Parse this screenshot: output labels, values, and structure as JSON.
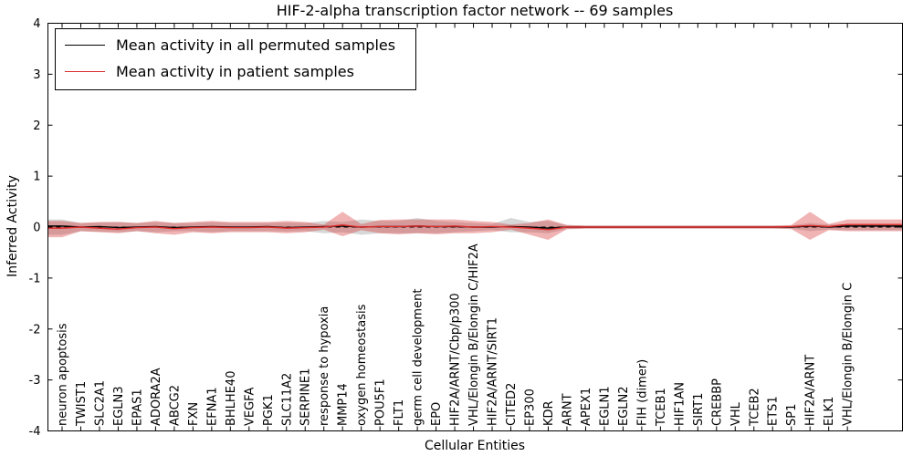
{
  "title": "HIF-2-alpha transcription factor network -- 69 samples",
  "chart_data": {
    "type": "line",
    "title": "HIF-2-alpha transcription factor network -- 69 samples",
    "xlabel": "Cellular Entities",
    "ylabel": "Inferred Activity",
    "ylim": [
      -4,
      4
    ],
    "yticks": [
      -4,
      -3,
      -2,
      -1,
      0,
      1,
      2,
      3,
      4
    ],
    "grid": false,
    "legend_position": "upper left",
    "categories": [
      "neuron apoptosis",
      "TWIST1",
      "SLC2A1",
      "EGLN3",
      "EPAS1",
      "ADORA2A",
      "ABCG2",
      "FXN",
      "EFNA1",
      "BHLHE40",
      "VEGFA",
      "PGK1",
      "SLC11A2",
      "SERPINE1",
      "response to hypoxia",
      "MMP14",
      "oxygen homeostasis",
      "POU5F1",
      "FLT1",
      "germ cell development",
      "EPO",
      "HIF2A/ARNT/Cbp/p300",
      "VHL/Elongin B/Elongin C/HIF2A",
      "HIF2A/ARNT/SIRT1",
      "CITED2",
      "EP300",
      "KDR",
      "ARNT",
      "APEX1",
      "EGLN1",
      "EGLN2",
      "FIH (dimer)",
      "TCEB1",
      "HIF1AN",
      "SIRT1",
      "CREBBP",
      "VHL",
      "TCEB2",
      "ETS1",
      "SP1",
      "HIF2A/ARNT",
      "ELK1",
      "VHL/Elongin B/Elongin C"
    ],
    "series": [
      {
        "name": "Mean activity in all permuted samples",
        "color": "#000000",
        "band_color": "rgba(140,140,140,0.35)",
        "values": [
          0.02,
          0.0,
          0.01,
          -0.01,
          0.0,
          0.01,
          -0.01,
          0.0,
          0.01,
          0.0,
          0.0,
          0.01,
          -0.01,
          0.0,
          0.01,
          0.02,
          0.0,
          0.01,
          0.01,
          0.02,
          0.01,
          0.01,
          0.0,
          0.0,
          0.01,
          0.0,
          -0.02,
          0.0,
          0.0,
          0.0,
          0.0,
          0.0,
          0.0,
          0.0,
          0.0,
          0.0,
          0.0,
          0.0,
          0.0,
          0.0,
          0.02,
          0.0,
          0.02
        ],
        "band_upper": [
          0.15,
          0.08,
          0.09,
          0.1,
          0.08,
          0.1,
          0.08,
          0.08,
          0.1,
          0.08,
          0.08,
          0.08,
          0.09,
          0.08,
          0.12,
          0.1,
          0.15,
          0.12,
          0.12,
          0.18,
          0.12,
          0.1,
          0.08,
          0.06,
          0.18,
          0.1,
          0.12,
          0.04,
          0.03,
          0.03,
          0.03,
          0.03,
          0.03,
          0.03,
          0.03,
          0.03,
          0.03,
          0.03,
          0.03,
          0.03,
          0.08,
          0.05,
          0.06
        ],
        "band_lower": [
          -0.15,
          -0.08,
          -0.09,
          -0.1,
          -0.08,
          -0.1,
          -0.08,
          -0.08,
          -0.1,
          -0.08,
          -0.08,
          -0.08,
          -0.09,
          -0.08,
          -0.12,
          -0.1,
          -0.15,
          -0.12,
          -0.12,
          -0.12,
          -0.12,
          -0.1,
          -0.08,
          -0.06,
          -0.1,
          -0.1,
          -0.12,
          -0.04,
          -0.03,
          -0.03,
          -0.03,
          -0.03,
          -0.03,
          -0.03,
          -0.03,
          -0.03,
          -0.03,
          -0.03,
          -0.03,
          -0.03,
          -0.08,
          -0.05,
          -0.06
        ]
      },
      {
        "name": "Mean activity in patient samples",
        "color": "#dd2c2c",
        "band_color": "rgba(214,39,40,0.35)",
        "values": [
          -0.02,
          0.0,
          -0.02,
          -0.04,
          -0.01,
          0.0,
          -0.03,
          -0.01,
          0.0,
          -0.01,
          -0.01,
          0.0,
          -0.02,
          -0.01,
          0.0,
          0.04,
          0.0,
          0.01,
          0.01,
          0.02,
          0.01,
          0.02,
          0.0,
          0.01,
          0.0,
          -0.02,
          -0.05,
          0.0,
          0.0,
          0.0,
          0.0,
          0.0,
          0.0,
          0.0,
          0.0,
          0.0,
          0.0,
          0.0,
          0.0,
          0.01,
          0.03,
          0.01,
          0.05
        ],
        "band_upper": [
          0.12,
          0.08,
          0.1,
          0.1,
          0.08,
          0.12,
          0.08,
          0.1,
          0.12,
          0.1,
          0.1,
          0.1,
          0.12,
          0.1,
          0.05,
          0.3,
          0.06,
          0.14,
          0.15,
          0.15,
          0.15,
          0.15,
          0.12,
          0.1,
          0.05,
          0.08,
          0.15,
          0.04,
          0.03,
          0.03,
          0.03,
          0.03,
          0.03,
          0.03,
          0.03,
          0.03,
          0.03,
          0.03,
          0.03,
          0.04,
          0.3,
          0.06,
          0.15
        ],
        "band_lower": [
          -0.2,
          -0.08,
          -0.1,
          -0.12,
          -0.08,
          -0.12,
          -0.15,
          -0.1,
          -0.12,
          -0.1,
          -0.1,
          -0.1,
          -0.12,
          -0.1,
          -0.05,
          -0.18,
          -0.06,
          -0.12,
          -0.14,
          -0.12,
          -0.14,
          -0.12,
          -0.12,
          -0.1,
          -0.05,
          -0.15,
          -0.25,
          -0.04,
          -0.03,
          -0.03,
          -0.03,
          -0.03,
          -0.03,
          -0.03,
          -0.03,
          -0.03,
          -0.03,
          -0.03,
          -0.03,
          -0.04,
          -0.25,
          -0.06,
          -0.08
        ]
      }
    ],
    "zero_line": {
      "value": 0,
      "style": "dashed",
      "color": "#000000"
    }
  }
}
